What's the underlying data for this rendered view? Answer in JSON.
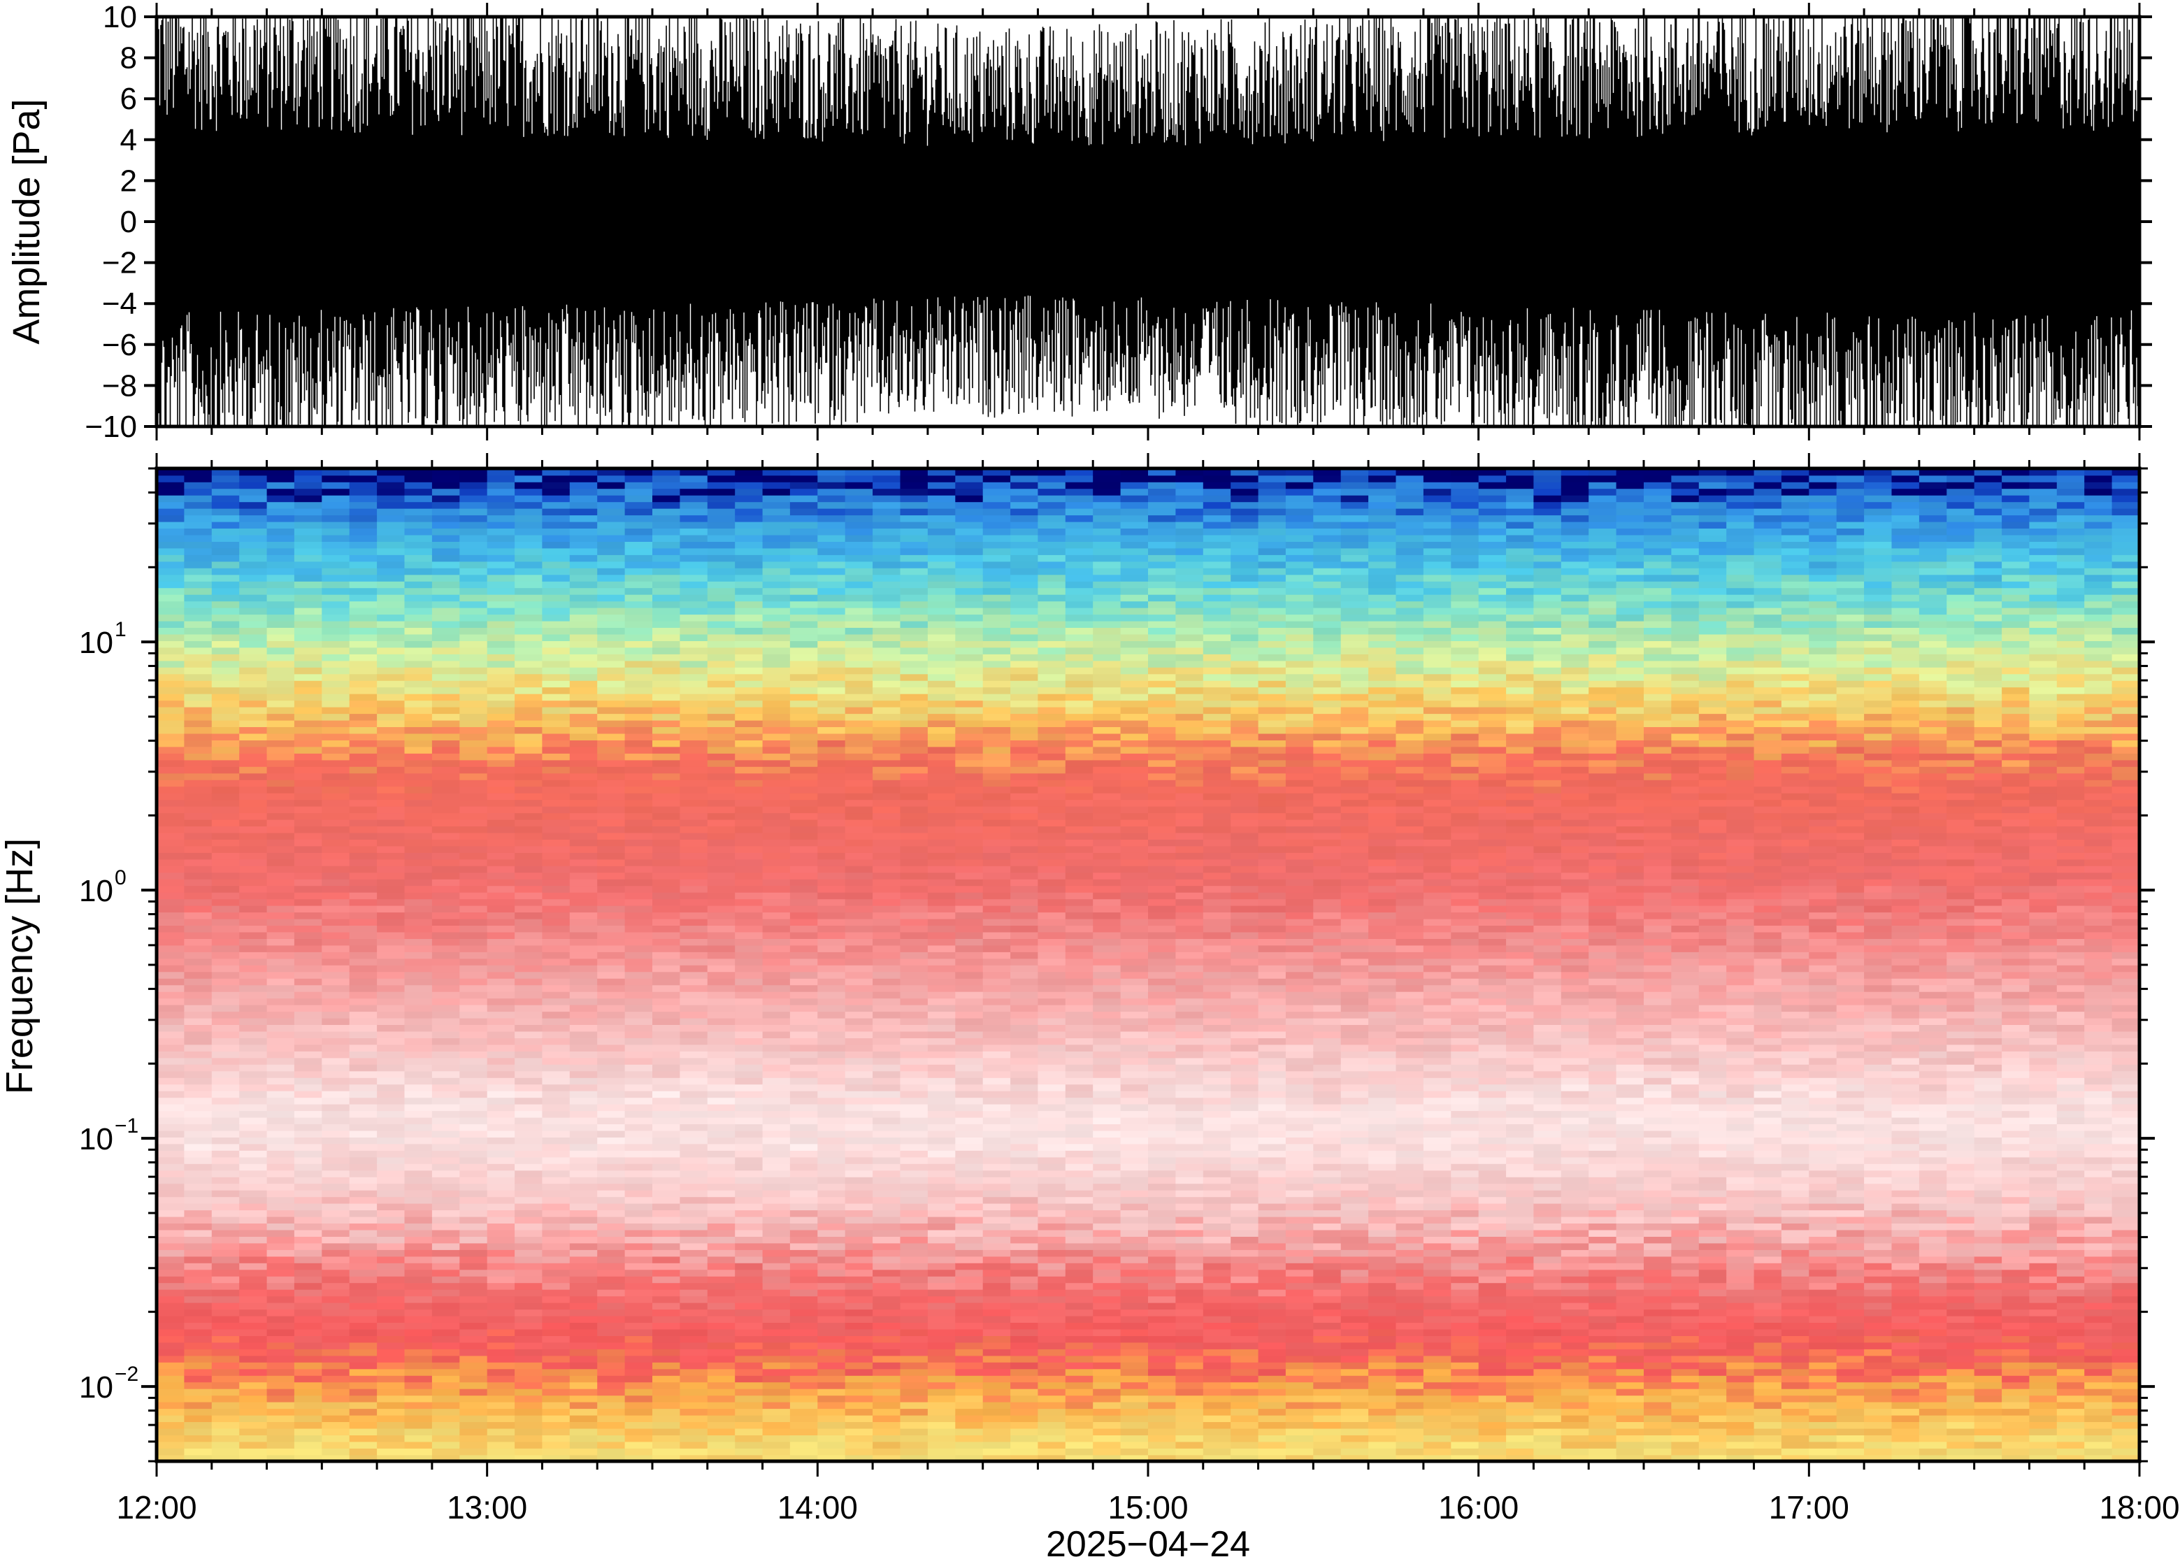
{
  "chart_data": [
    {
      "type": "line",
      "panel": "waveform",
      "ylabel": "Amplitude [Pa]",
      "ylim": [
        -10,
        10
      ],
      "yticks": [
        "10",
        "8",
        "6",
        "4",
        "2",
        "0",
        "−2",
        "−4",
        "−6",
        "−8",
        "−10"
      ],
      "xlim": [
        "12:00",
        "18:00"
      ],
      "series": [
        {
          "color": "#000000",
          "description_values": "dense band; typical peak envelope in Pa (upper/lower) per half hour",
          "x": [
            "12:00",
            "12:30",
            "13:00",
            "13:30",
            "14:00",
            "14:30",
            "15:00",
            "15:30",
            "16:00",
            "16:30",
            "17:00",
            "17:30",
            "18:00"
          ],
          "upper": [
            9.8,
            9.5,
            9.2,
            9.0,
            8.5,
            8.0,
            8.2,
            8.5,
            8.8,
            9.0,
            9.5,
            9.8,
            9.6
          ],
          "lower": [
            -9.8,
            -9.5,
            -9.0,
            -9.0,
            -8.5,
            -8.0,
            -8.0,
            -8.5,
            -9.0,
            -9.5,
            -9.8,
            -9.8,
            -9.6
          ]
        }
      ]
    },
    {
      "type": "heatmap",
      "panel": "spectrogram",
      "ylabel": "Frequency [Hz]",
      "xlabel": "2025−04−24",
      "yscale": "log",
      "ylim": [
        0.005,
        50
      ],
      "yticks": [
        {
          "value": 0.01,
          "base": "10",
          "exp": "−2"
        },
        {
          "value": 0.1,
          "base": "10",
          "exp": "−1"
        },
        {
          "value": 1,
          "base": "10",
          "exp": "0"
        },
        {
          "value": 10,
          "base": "10",
          "exp": "1"
        }
      ],
      "xticks": [
        "12:00",
        "13:00",
        "14:00",
        "15:00",
        "16:00",
        "17:00",
        "18:00"
      ],
      "xlim": [
        "12:00",
        "18:00"
      ],
      "colormap": [
        "#000070",
        "#1040c0",
        "#1e88e5",
        "#40c0e8",
        "#6fdcc8",
        "#c8f09a",
        "#f6e06a",
        "#fbb04a",
        "#f26a5a",
        "#f07d7d",
        "#f8c7c7",
        "#ffffff"
      ],
      "band_profile": [
        {
          "freq_hz": 48,
          "color": "#000070"
        },
        {
          "freq_hz": 45,
          "color": "#1040c0"
        },
        {
          "freq_hz": 35,
          "color": "#2f8ae0"
        },
        {
          "freq_hz": 20,
          "color": "#4cc8e6"
        },
        {
          "freq_hz": 13,
          "color": "#8ee6c0"
        },
        {
          "freq_hz": 8,
          "color": "#dff09a"
        },
        {
          "freq_hz": 5,
          "color": "#fbc35a"
        },
        {
          "freq_hz": 3,
          "color": "#f26a5a"
        },
        {
          "freq_hz": 1,
          "color": "#f06e6e"
        },
        {
          "freq_hz": 0.4,
          "color": "#f5a6a6"
        },
        {
          "freq_hz": 0.12,
          "color": "#fbe6e6"
        },
        {
          "freq_hz": 0.05,
          "color": "#f8c4c4"
        },
        {
          "freq_hz": 0.025,
          "color": "#f26e6e"
        },
        {
          "freq_hz": 0.014,
          "color": "#f4585a"
        },
        {
          "freq_hz": 0.009,
          "color": "#fbb04a"
        },
        {
          "freq_hz": 0.005,
          "color": "#f4e27a"
        }
      ]
    }
  ]
}
